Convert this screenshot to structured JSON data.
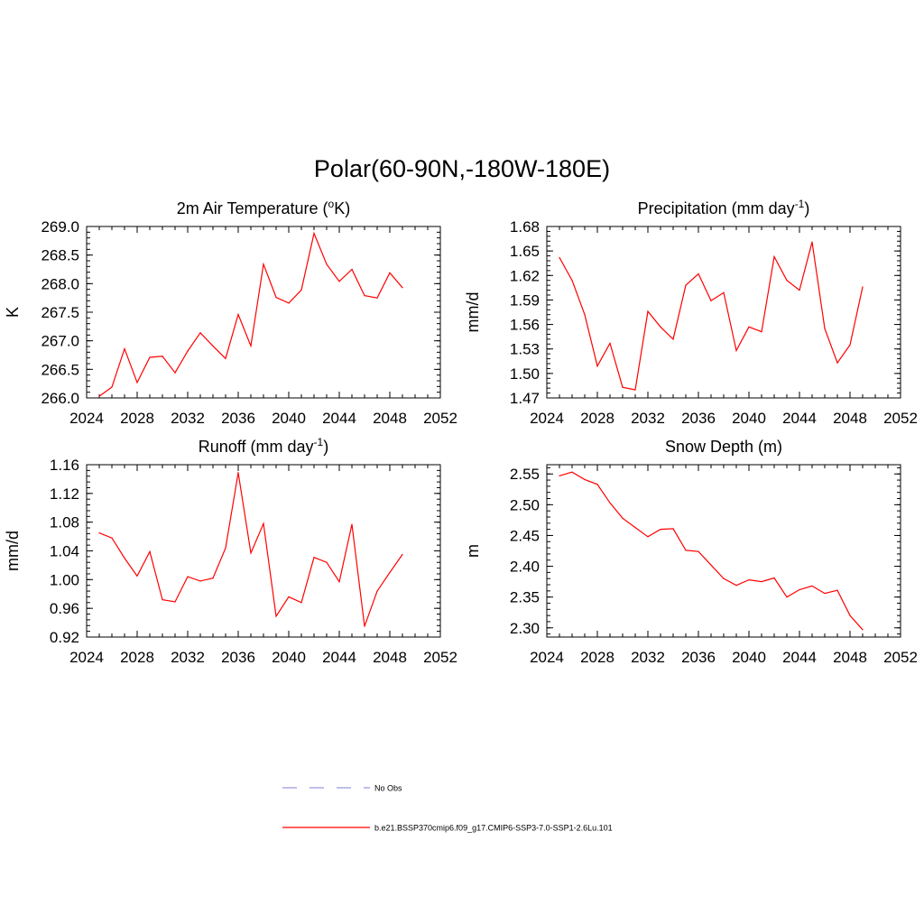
{
  "figure": {
    "title": "Polar(60-90N,-180W-180E)"
  },
  "colors": {
    "model_line": "#ff0000",
    "obs_line": "#9999dd",
    "axis": "#000000"
  },
  "chart_data": [
    {
      "type": "line",
      "id": "temp",
      "title": "2m Air Temperature (",
      "title_sup": "o",
      "title_post": "K)",
      "ylabel": "K",
      "xlabel": "",
      "xlim": [
        2024,
        2052
      ],
      "ylim": [
        266.0,
        269.0
      ],
      "xticks": [
        2024,
        2028,
        2032,
        2036,
        2040,
        2044,
        2048,
        2052
      ],
      "yticks": [
        266.0,
        266.5,
        267.0,
        267.5,
        268.0,
        268.5,
        269.0
      ],
      "ytick_decimals": 1,
      "x": [
        2025,
        2026,
        2027,
        2028,
        2029,
        2030,
        2031,
        2032,
        2033,
        2034,
        2035,
        2036,
        2037,
        2038,
        2039,
        2040,
        2041,
        2042,
        2043,
        2044,
        2045,
        2046,
        2047,
        2048,
        2049
      ],
      "series": [
        {
          "name": "b.e21.BSSP370cmip6.f09_g17.CMIP6-SSP3-7.0-SSP1-2.6Lu.101",
          "values": [
            266.03,
            266.19,
            266.86,
            266.27,
            266.71,
            266.73,
            266.44,
            266.82,
            267.14,
            266.91,
            266.69,
            267.46,
            266.91,
            268.34,
            267.76,
            267.66,
            267.89,
            268.88,
            268.34,
            268.04,
            268.25,
            267.79,
            267.75,
            268.19,
            267.93
          ]
        }
      ],
      "grid": false
    },
    {
      "type": "line",
      "id": "precip",
      "title": "Precipitation (mm day",
      "title_sup": "-1",
      "title_post": ")",
      "ylabel": "mm/d",
      "xlabel": "",
      "xlim": [
        2024,
        2052
      ],
      "ylim": [
        1.47,
        1.68
      ],
      "xticks": [
        2024,
        2028,
        2032,
        2036,
        2040,
        2044,
        2048,
        2052
      ],
      "yticks": [
        1.47,
        1.5,
        1.53,
        1.56,
        1.59,
        1.62,
        1.65,
        1.68
      ],
      "ytick_decimals": 2,
      "x": [
        2025,
        2026,
        2027,
        2028,
        2029,
        2030,
        2031,
        2032,
        2033,
        2034,
        2035,
        2036,
        2037,
        2038,
        2039,
        2040,
        2041,
        2042,
        2043,
        2044,
        2045,
        2046,
        2047,
        2048,
        2049
      ],
      "series": [
        {
          "name": "b.e21.BSSP370cmip6.f09_g17.CMIP6-SSP3-7.0-SSP1-2.6Lu.101",
          "values": [
            1.642,
            1.614,
            1.572,
            1.509,
            1.537,
            1.483,
            1.48,
            1.576,
            1.557,
            1.542,
            1.608,
            1.622,
            1.589,
            1.599,
            1.528,
            1.557,
            1.551,
            1.643,
            1.614,
            1.602,
            1.661,
            1.555,
            1.513,
            1.535,
            1.606
          ]
        }
      ],
      "grid": false
    },
    {
      "type": "line",
      "id": "runoff",
      "title": "Runoff (mm day",
      "title_sup": "-1",
      "title_post": ")",
      "ylabel": "mm/d",
      "xlabel": "",
      "xlim": [
        2024,
        2052
      ],
      "ylim": [
        0.92,
        1.16
      ],
      "xticks": [
        2024,
        2028,
        2032,
        2036,
        2040,
        2044,
        2048,
        2052
      ],
      "yticks": [
        0.92,
        0.96,
        1.0,
        1.04,
        1.08,
        1.12,
        1.16
      ],
      "ytick_decimals": 2,
      "x": [
        2025,
        2026,
        2027,
        2028,
        2029,
        2030,
        2031,
        2032,
        2033,
        2034,
        2035,
        2036,
        2037,
        2038,
        2039,
        2040,
        2041,
        2042,
        2043,
        2044,
        2045,
        2046,
        2047,
        2048,
        2049
      ],
      "series": [
        {
          "name": "b.e21.BSSP370cmip6.f09_g17.CMIP6-SSP3-7.0-SSP1-2.6Lu.101",
          "values": [
            1.065,
            1.058,
            1.03,
            1.005,
            1.039,
            0.972,
            0.969,
            1.004,
            0.998,
            1.002,
            1.044,
            1.149,
            1.037,
            1.078,
            0.949,
            0.976,
            0.968,
            1.031,
            1.024,
            0.997,
            1.077,
            0.935,
            0.984,
            1.01,
            1.035
          ]
        }
      ],
      "grid": false
    },
    {
      "type": "line",
      "id": "snow",
      "title": "Snow Depth (m)",
      "title_sup": "",
      "title_post": "",
      "ylabel": "m",
      "xlabel": "",
      "xlim": [
        2024,
        2052
      ],
      "ylim": [
        2.285,
        2.565
      ],
      "xticks": [
        2024,
        2028,
        2032,
        2036,
        2040,
        2044,
        2048,
        2052
      ],
      "yticks": [
        2.3,
        2.35,
        2.4,
        2.45,
        2.5,
        2.55
      ],
      "ytick_decimals": 2,
      "x": [
        2025,
        2026,
        2027,
        2028,
        2029,
        2030,
        2031,
        2032,
        2033,
        2034,
        2035,
        2036,
        2037,
        2038,
        2039,
        2040,
        2041,
        2042,
        2043,
        2044,
        2045,
        2046,
        2047,
        2048,
        2049
      ],
      "series": [
        {
          "name": "b.e21.BSSP370cmip6.f09_g17.CMIP6-SSP3-7.0-SSP1-2.6Lu.101",
          "values": [
            2.547,
            2.553,
            2.541,
            2.533,
            2.503,
            2.478,
            2.463,
            2.448,
            2.46,
            2.461,
            2.426,
            2.424,
            2.402,
            2.38,
            2.369,
            2.378,
            2.375,
            2.381,
            2.35,
            2.362,
            2.368,
            2.356,
            2.361,
            2.32,
            2.297
          ]
        }
      ],
      "grid": false
    }
  ],
  "legend": {
    "placement": "bottom-center",
    "items": [
      {
        "label": "No Obs",
        "style": "dashed",
        "color": "#9999dd"
      },
      {
        "label": "b.e21.BSSP370cmip6.f09_g17.CMIP6-SSP3-7.0-SSP1-2.6Lu.101",
        "style": "solid",
        "color": "#ff0000"
      }
    ]
  }
}
